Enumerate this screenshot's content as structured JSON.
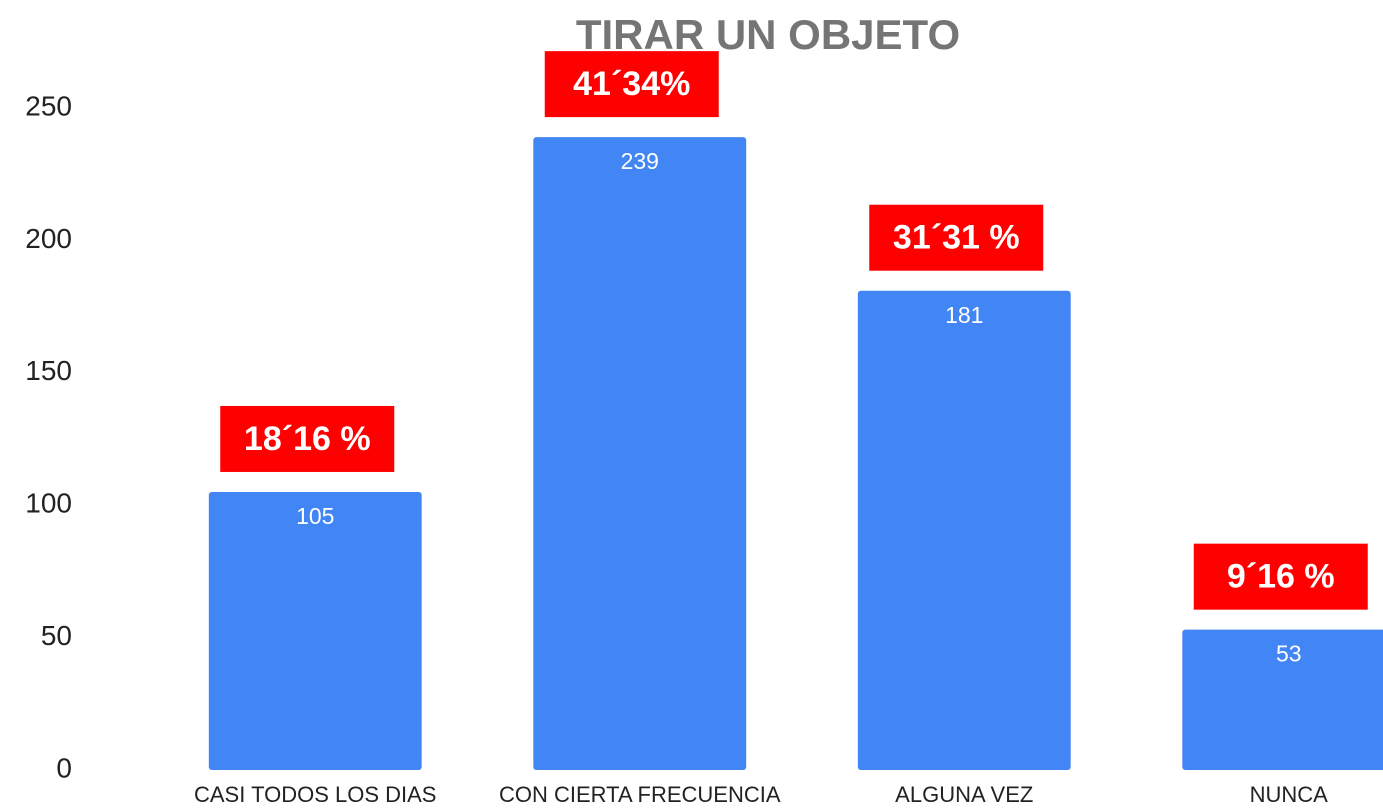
{
  "chart_data": {
    "type": "bar",
    "title": "TIRAR UN OBJETO",
    "categories": [
      "CASI TODOS LOS DIAS",
      "CON CIERTA FRECUENCIA",
      "ALGUNA VEZ",
      "NUNCA"
    ],
    "values": [
      105,
      239,
      181,
      53
    ],
    "annotations": [
      "18´16 %",
      "41´34%",
      "31´31 %",
      "9´16 %"
    ],
    "color": "#4285f4",
    "annotation_color": "#ff0000",
    "ylim": [
      0,
      250
    ],
    "yticks": [
      0,
      50,
      100,
      150,
      200,
      250
    ],
    "grid": false
  }
}
